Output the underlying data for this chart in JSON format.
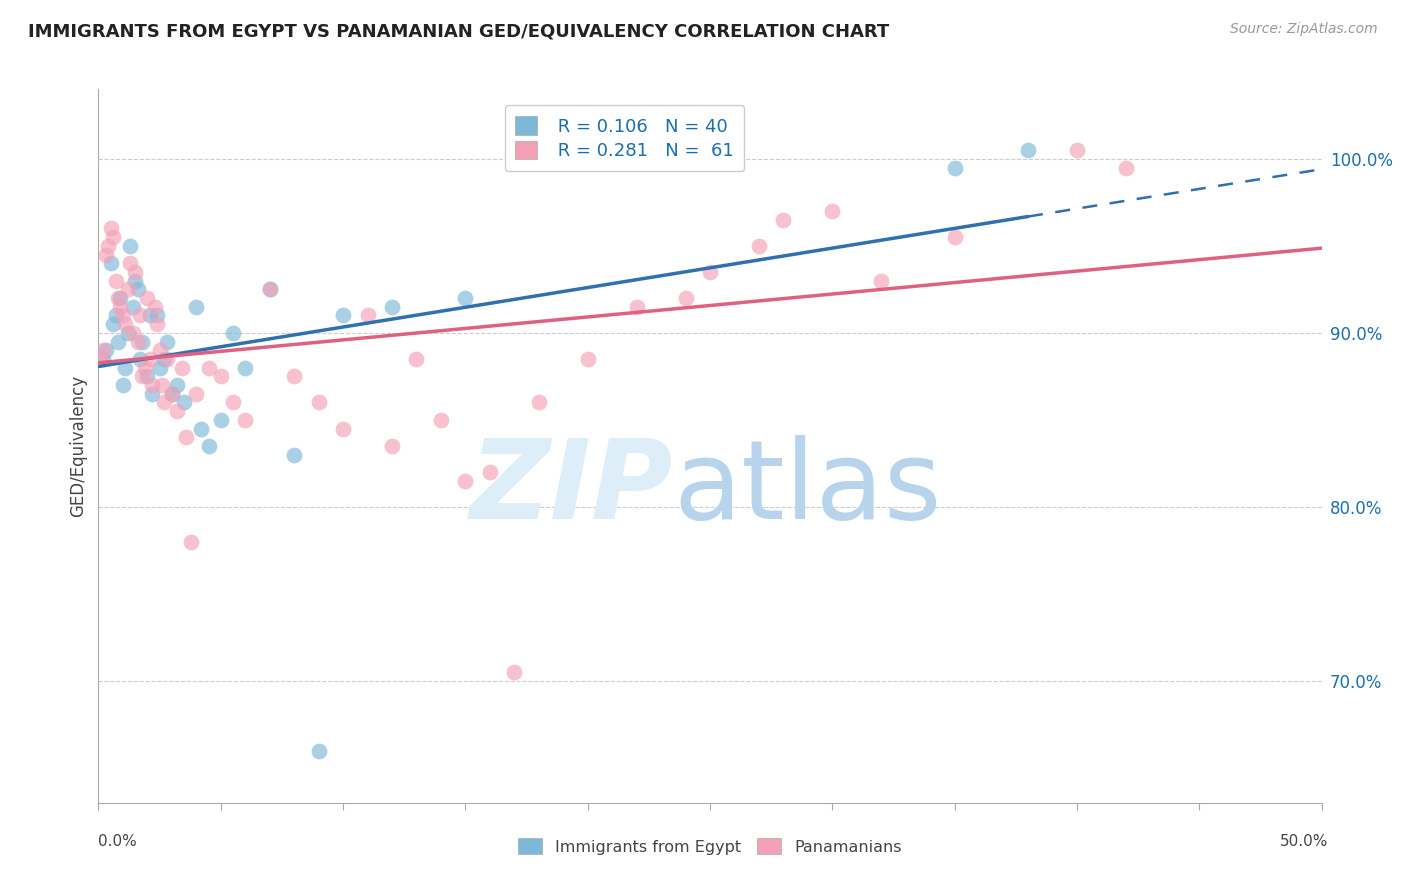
{
  "title": "IMMIGRANTS FROM EGYPT VS PANAMANIAN GED/EQUIVALENCY CORRELATION CHART",
  "source": "Source: ZipAtlas.com",
  "ylabel": "GED/Equivalency",
  "yticks": [
    70.0,
    80.0,
    90.0,
    100.0
  ],
  "ytick_labels": [
    "70.0%",
    "80.0%",
    "90.0%",
    "100.0%"
  ],
  "xmin": 0.0,
  "xmax": 50.0,
  "ymin": 63.0,
  "ymax": 104.0,
  "blue_R": 0.106,
  "blue_N": 40,
  "pink_R": 0.281,
  "pink_N": 61,
  "blue_color": "#7db8d8",
  "pink_color": "#f4a0b8",
  "blue_line_color": "#3070b0",
  "pink_line_color": "#e06080",
  "legend_r_color": "#1a6faf",
  "blue_scatter_x": [
    0.2,
    0.3,
    0.5,
    0.6,
    0.7,
    0.8,
    0.9,
    1.0,
    1.1,
    1.2,
    1.3,
    1.4,
    1.5,
    1.6,
    1.7,
    1.8,
    2.0,
    2.1,
    2.2,
    2.4,
    2.5,
    2.7,
    2.8,
    3.0,
    3.2,
    3.5,
    4.0,
    4.2,
    4.5,
    5.0,
    5.5,
    6.0,
    7.0,
    8.0,
    9.0,
    10.0,
    12.0,
    15.0,
    35.0,
    38.0
  ],
  "blue_scatter_y": [
    88.5,
    89.0,
    94.0,
    90.5,
    91.0,
    89.5,
    92.0,
    87.0,
    88.0,
    90.0,
    95.0,
    91.5,
    93.0,
    92.5,
    88.5,
    89.5,
    87.5,
    91.0,
    86.5,
    91.0,
    88.0,
    88.5,
    89.5,
    86.5,
    87.0,
    86.0,
    91.5,
    84.5,
    83.5,
    85.0,
    90.0,
    88.0,
    92.5,
    83.0,
    66.0,
    91.0,
    91.5,
    92.0,
    99.5,
    100.5
  ],
  "pink_scatter_x": [
    0.1,
    0.2,
    0.3,
    0.4,
    0.5,
    0.6,
    0.7,
    0.8,
    0.9,
    1.0,
    1.1,
    1.2,
    1.3,
    1.4,
    1.5,
    1.6,
    1.7,
    1.8,
    1.9,
    2.0,
    2.1,
    2.2,
    2.3,
    2.4,
    2.5,
    2.6,
    2.7,
    2.8,
    3.0,
    3.2,
    3.4,
    3.6,
    3.8,
    4.0,
    4.5,
    5.0,
    5.5,
    6.0,
    7.0,
    8.0,
    9.0,
    10.0,
    11.0,
    12.0,
    13.0,
    14.0,
    15.0,
    16.0,
    17.0,
    18.0,
    20.0,
    22.0,
    24.0,
    25.0,
    27.0,
    28.0,
    30.0,
    32.0,
    35.0,
    40.0,
    42.0
  ],
  "pink_scatter_y": [
    88.5,
    89.0,
    94.5,
    95.0,
    96.0,
    95.5,
    93.0,
    92.0,
    91.5,
    91.0,
    90.5,
    92.5,
    94.0,
    90.0,
    93.5,
    89.5,
    91.0,
    87.5,
    88.0,
    92.0,
    88.5,
    87.0,
    91.5,
    90.5,
    89.0,
    87.0,
    86.0,
    88.5,
    86.5,
    85.5,
    88.0,
    84.0,
    78.0,
    86.5,
    88.0,
    87.5,
    86.0,
    85.0,
    92.5,
    87.5,
    86.0,
    84.5,
    91.0,
    83.5,
    88.5,
    85.0,
    81.5,
    82.0,
    70.5,
    86.0,
    88.5,
    91.5,
    92.0,
    93.5,
    95.0,
    96.5,
    97.0,
    93.0,
    95.5,
    100.5,
    99.5
  ]
}
